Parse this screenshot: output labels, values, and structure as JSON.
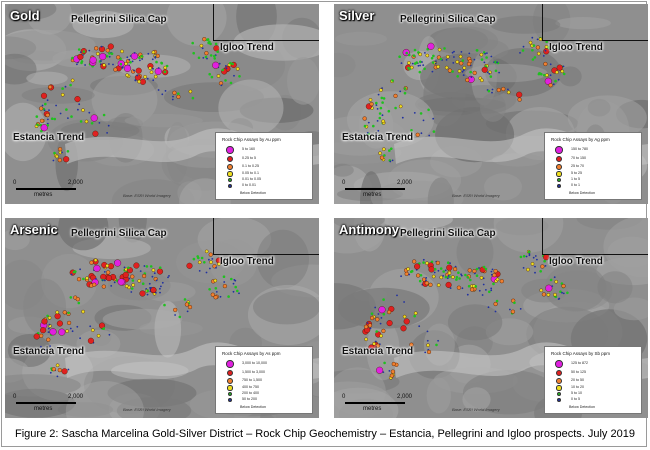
{
  "caption": "Figure 2: Sascha Marcelina Gold-Silver District – Rock Chip Geochemistry – Estancia, Pellegrini and Igloo prospects. July 2019",
  "map_labels": {
    "pellegrini": "Pellegrini Silica Cap",
    "igloo": "Igloo Trend",
    "estancia": "Estancia Trend"
  },
  "scale": {
    "zero": "0",
    "end": "2,000",
    "unit": "metres"
  },
  "source_note": "Base: ESRI World Imagery",
  "below_detection": "Below Detection",
  "panels": [
    {
      "id": "gold",
      "title": "Gold",
      "legend_title": "Rock Chip Assays by Au ppm",
      "classes": [
        {
          "label": "5  to 160",
          "color": "#e020e0"
        },
        {
          "label": "0.25 to    5",
          "color": "#e02020"
        },
        {
          "label": "0.1  to   0.25",
          "color": "#f08030"
        },
        {
          "label": "0.05 to   0.1",
          "color": "#f0e020"
        },
        {
          "label": "0.01 to   0.05",
          "color": "#20c020"
        },
        {
          "label": "0   to   0.01",
          "color": "#2030a0"
        }
      ]
    },
    {
      "id": "silver",
      "title": "Silver",
      "legend_title": "Rock Chip Assays by Ag ppm",
      "classes": [
        {
          "label": "150 to  780",
          "color": "#e020e0"
        },
        {
          "label": "70 to  150",
          "color": "#e02020"
        },
        {
          "label": "25 to   70",
          "color": "#f08030"
        },
        {
          "label": "5 to   25",
          "color": "#f0e020"
        },
        {
          "label": "1 to    5",
          "color": "#20c020"
        },
        {
          "label": "0 to    1",
          "color": "#2030a0"
        }
      ]
    },
    {
      "id": "arsenic",
      "title": "Arsenic",
      "legend_title": "Rock Chip Assays by As ppm",
      "classes": [
        {
          "label": "3,000 to 10,000",
          "color": "#e020e0"
        },
        {
          "label": "1,500 to  3,000",
          "color": "#e02020"
        },
        {
          "label": "750 to  1,500",
          "color": "#f08030"
        },
        {
          "label": "400 to    750",
          "color": "#f0e020"
        },
        {
          "label": "200 to    400",
          "color": "#20c020"
        },
        {
          "label": "50 to    200",
          "color": "#2030a0"
        }
      ]
    },
    {
      "id": "antimony",
      "title": "Antimony",
      "legend_title": "Rock Chip Assays by Sb ppm",
      "classes": [
        {
          "label": "125 to 872",
          "color": "#e020e0"
        },
        {
          "label": "50 to 125",
          "color": "#e02020"
        },
        {
          "label": "20 to  50",
          "color": "#f08030"
        },
        {
          "label": "10 to  20",
          "color": "#f0e020"
        },
        {
          "label": "5 to  10",
          "color": "#20c020"
        },
        {
          "label": "0 to   5",
          "color": "#2030a0"
        }
      ]
    }
  ]
}
